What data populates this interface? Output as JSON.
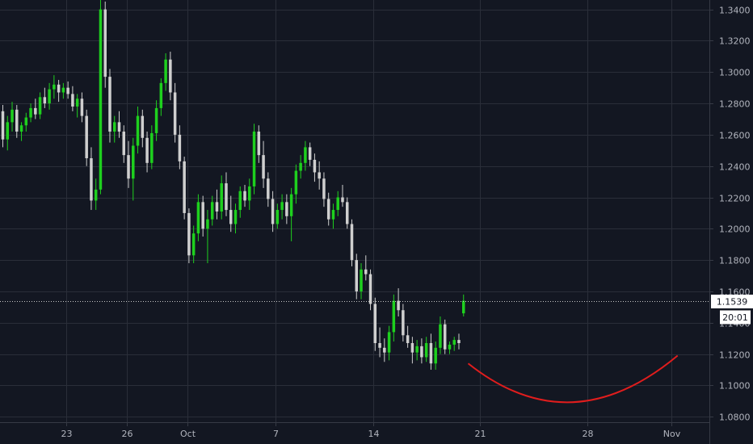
{
  "chart_data": {
    "type": "candlestick",
    "x_ticks": [
      "23",
      "26",
      "Oct",
      "7",
      "14",
      "21",
      "28",
      "Nov"
    ],
    "y_ticks": [
      "1.0800",
      "1.1000",
      "1.1200",
      "1.1400",
      "1.1600",
      "1.1800",
      "1.2000",
      "1.2200",
      "1.2400",
      "1.2600",
      "1.2800",
      "1.3000",
      "1.3200",
      "1.3400"
    ],
    "ylim": [
      1.0765,
      1.346
    ],
    "last_price": {
      "value": 1.1539,
      "label": "1.1539",
      "timer": "20:01"
    },
    "colors": {
      "up": "#1ed01e",
      "down": "#cfcfcf",
      "arc": "#e01d1d",
      "background": "#131722",
      "grid": "#2a2e39"
    },
    "candles_ohlc": [
      [
        1.275,
        1.279,
        1.252,
        1.257
      ],
      [
        1.257,
        1.272,
        1.25,
        1.268
      ],
      [
        1.268,
        1.281,
        1.262,
        1.276
      ],
      [
        1.276,
        1.279,
        1.258,
        1.262
      ],
      [
        1.262,
        1.268,
        1.256,
        1.266
      ],
      [
        1.266,
        1.274,
        1.262,
        1.271
      ],
      [
        1.271,
        1.28,
        1.268,
        1.277
      ],
      [
        1.277,
        1.283,
        1.27,
        1.273
      ],
      [
        1.273,
        1.287,
        1.27,
        1.284
      ],
      [
        1.284,
        1.29,
        1.277,
        1.28
      ],
      [
        1.28,
        1.293,
        1.276,
        1.289
      ],
      [
        1.289,
        1.298,
        1.283,
        1.292
      ],
      [
        1.292,
        1.295,
        1.281,
        1.287
      ],
      [
        1.287,
        1.293,
        1.283,
        1.29
      ],
      [
        1.29,
        1.294,
        1.283,
        1.286
      ],
      [
        1.286,
        1.291,
        1.275,
        1.278
      ],
      [
        1.278,
        1.286,
        1.271,
        1.283
      ],
      [
        1.283,
        1.287,
        1.268,
        1.272
      ],
      [
        1.272,
        1.276,
        1.24,
        1.245
      ],
      [
        1.245,
        1.252,
        1.212,
        1.218
      ],
      [
        1.218,
        1.232,
        1.212,
        1.225
      ],
      [
        1.225,
        1.346,
        1.222,
        1.34
      ],
      [
        1.34,
        1.345,
        1.29,
        1.297
      ],
      [
        1.297,
        1.302,
        1.255,
        1.262
      ],
      [
        1.262,
        1.272,
        1.255,
        1.268
      ],
      [
        1.268,
        1.275,
        1.258,
        1.262
      ],
      [
        1.262,
        1.266,
        1.242,
        1.247
      ],
      [
        1.247,
        1.256,
        1.226,
        1.232
      ],
      [
        1.232,
        1.258,
        1.218,
        1.253
      ],
      [
        1.253,
        1.278,
        1.248,
        1.272
      ],
      [
        1.272,
        1.276,
        1.252,
        1.258
      ],
      [
        1.258,
        1.262,
        1.236,
        1.242
      ],
      [
        1.242,
        1.266,
        1.238,
        1.261
      ],
      [
        1.261,
        1.282,
        1.256,
        1.277
      ],
      [
        1.277,
        1.296,
        1.272,
        1.293
      ],
      [
        1.293,
        1.312,
        1.288,
        1.308
      ],
      [
        1.308,
        1.313,
        1.282,
        1.287
      ],
      [
        1.287,
        1.293,
        1.255,
        1.26
      ],
      [
        1.26,
        1.266,
        1.238,
        1.243
      ],
      [
        1.243,
        1.246,
        1.206,
        1.21
      ],
      [
        1.21,
        1.213,
        1.178,
        1.183
      ],
      [
        1.183,
        1.202,
        1.178,
        1.197
      ],
      [
        1.197,
        1.222,
        1.192,
        1.217
      ],
      [
        1.217,
        1.221,
        1.195,
        1.2
      ],
      [
        1.2,
        1.212,
        1.178,
        1.206
      ],
      [
        1.206,
        1.221,
        1.202,
        1.217
      ],
      [
        1.217,
        1.225,
        1.206,
        1.211
      ],
      [
        1.211,
        1.234,
        1.206,
        1.229
      ],
      [
        1.229,
        1.236,
        1.208,
        1.212
      ],
      [
        1.212,
        1.221,
        1.198,
        1.203
      ],
      [
        1.203,
        1.216,
        1.197,
        1.212
      ],
      [
        1.212,
        1.227,
        1.207,
        1.224
      ],
      [
        1.224,
        1.228,
        1.214,
        1.218
      ],
      [
        1.218,
        1.232,
        1.212,
        1.227
      ],
      [
        1.227,
        1.267,
        1.222,
        1.262
      ],
      [
        1.262,
        1.266,
        1.242,
        1.247
      ],
      [
        1.247,
        1.256,
        1.226,
        1.232
      ],
      [
        1.232,
        1.236,
        1.214,
        1.219
      ],
      [
        1.219,
        1.224,
        1.198,
        1.203
      ],
      [
        1.203,
        1.216,
        1.2,
        1.212
      ],
      [
        1.212,
        1.222,
        1.206,
        1.217
      ],
      [
        1.217,
        1.222,
        1.203,
        1.208
      ],
      [
        1.208,
        1.226,
        1.192,
        1.222
      ],
      [
        1.222,
        1.241,
        1.216,
        1.237
      ],
      [
        1.237,
        1.247,
        1.232,
        1.242
      ],
      [
        1.242,
        1.256,
        1.237,
        1.252
      ],
      [
        1.252,
        1.255,
        1.24,
        1.244
      ],
      [
        1.244,
        1.248,
        1.23,
        1.236
      ],
      [
        1.236,
        1.243,
        1.225,
        1.232
      ],
      [
        1.232,
        1.236,
        1.214,
        1.219
      ],
      [
        1.219,
        1.223,
        1.202,
        1.206
      ],
      [
        1.206,
        1.216,
        1.2,
        1.212
      ],
      [
        1.212,
        1.224,
        1.208,
        1.22
      ],
      [
        1.22,
        1.228,
        1.214,
        1.217
      ],
      [
        1.217,
        1.22,
        1.2,
        1.203
      ],
      [
        1.203,
        1.206,
        1.176,
        1.18
      ],
      [
        1.18,
        1.184,
        1.155,
        1.16
      ],
      [
        1.16,
        1.178,
        1.155,
        1.174
      ],
      [
        1.174,
        1.183,
        1.167,
        1.171
      ],
      [
        1.171,
        1.174,
        1.148,
        1.152
      ],
      [
        1.152,
        1.156,
        1.122,
        1.127
      ],
      [
        1.127,
        1.137,
        1.118,
        1.124
      ],
      [
        1.124,
        1.13,
        1.115,
        1.121
      ],
      [
        1.121,
        1.138,
        1.116,
        1.134
      ],
      [
        1.134,
        1.158,
        1.128,
        1.154
      ],
      [
        1.154,
        1.162,
        1.144,
        1.148
      ],
      [
        1.148,
        1.152,
        1.128,
        1.132
      ],
      [
        1.132,
        1.138,
        1.124,
        1.127
      ],
      [
        1.127,
        1.131,
        1.114,
        1.121
      ],
      [
        1.121,
        1.129,
        1.116,
        1.125
      ],
      [
        1.125,
        1.13,
        1.114,
        1.118
      ],
      [
        1.118,
        1.131,
        1.115,
        1.127
      ],
      [
        1.127,
        1.133,
        1.11,
        1.114
      ],
      [
        1.114,
        1.128,
        1.11,
        1.124
      ],
      [
        1.124,
        1.144,
        1.12,
        1.139
      ],
      [
        1.139,
        1.142,
        1.12,
        1.123
      ],
      [
        1.123,
        1.128,
        1.12,
        1.126
      ],
      [
        1.126,
        1.131,
        1.122,
        1.129
      ],
      [
        1.129,
        1.133,
        1.123,
        1.127
      ],
      [
        1.146,
        1.158,
        1.144,
        1.154
      ]
    ],
    "trend_arc": {
      "start": [
        100,
        1.114
      ],
      "control": [
        122,
        1.062
      ],
      "end": [
        145,
        1.119
      ]
    }
  }
}
